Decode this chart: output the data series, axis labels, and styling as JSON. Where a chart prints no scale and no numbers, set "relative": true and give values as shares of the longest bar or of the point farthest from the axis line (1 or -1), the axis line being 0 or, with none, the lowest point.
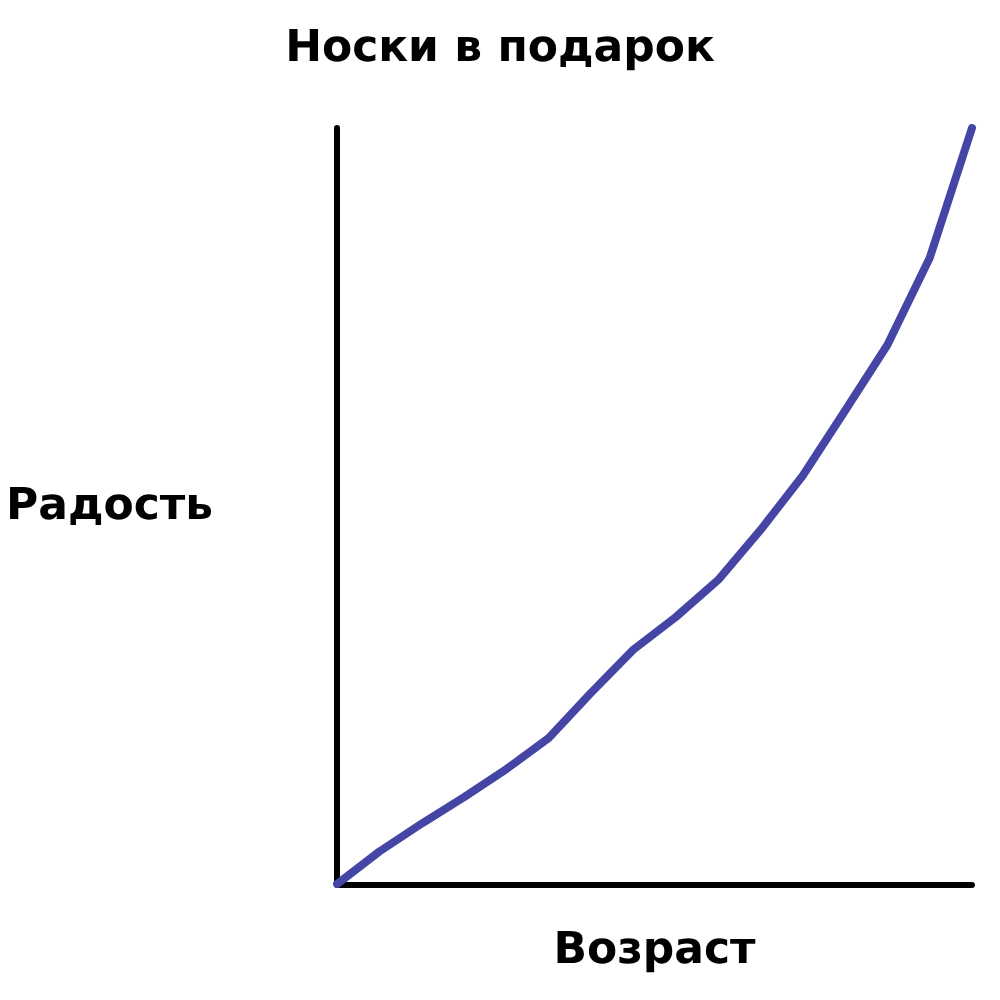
{
  "chart_data": {
    "type": "line",
    "title": "Носки в подарок",
    "xlabel": "Возраст",
    "ylabel": "Радость",
    "relative": true,
    "grid": false,
    "marker": "none",
    "line_style": "solid",
    "categories": [
      null,
      null,
      null,
      null,
      null,
      null,
      null,
      null,
      null,
      null,
      null,
      null,
      null,
      null,
      null,
      null
    ],
    "series": [
      {
        "color": "#4545a5",
        "values": [
          0,
          0.043,
          0.08,
          0.115,
          0.152,
          0.193,
          0.253,
          0.31,
          0.353,
          0.402,
          0.468,
          0.54,
          0.626,
          0.713,
          0.828,
          1
        ]
      }
    ]
  }
}
